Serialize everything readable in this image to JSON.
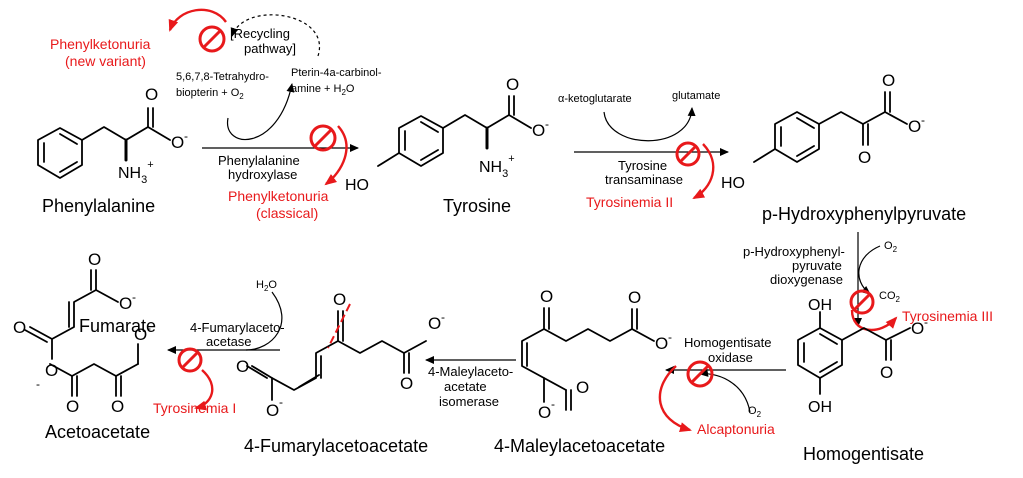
{
  "compounds": {
    "phenylalanine": "Phenylalanine",
    "tyrosine": "Tyrosine",
    "hpp": "p-Hydroxyphenylpyruvate",
    "homogentisate": "Homogentisate",
    "maleylacetoacetate": "4-Maleylacetoacetate",
    "fumarylacetoacetate": "4-Fumarylacetoacetate",
    "fumarate": "Fumarate",
    "acetoacetate": "Acetoacetate"
  },
  "enzymes": {
    "pah_1": "Phenylalanine",
    "pah_2": "hydroxylase",
    "tat_1": "Tyrosine",
    "tat_2": "transaminase",
    "hppd_1": "p-Hydroxyphenyl-",
    "hppd_2": "pyruvate",
    "hppd_3": "dioxygenase",
    "hgd_1": "Homogentisate",
    "hgd_2": "oxidase",
    "mai_1": "4-Maleylaceto-",
    "mai_2": "acetate",
    "mai_3": "isomerase",
    "fah_1": "4-Fumarylaceto-",
    "fah_2": "acetase"
  },
  "cofactors": {
    "bh4_1": "5,6,7,8-Tetrahydro-",
    "bh4_2": "biopterin + O",
    "bh4_2_sub": "2",
    "carb_1": "Pterin-4a-carbinol-",
    "carb_2": "amine + H",
    "carb_2_sub": "2",
    "carb_2_end": "O",
    "recycling_1": "[Recycling",
    "recycling_2": "pathway]",
    "akg": "α-ketoglutarate",
    "glutamate": "glutamate",
    "o2_hppd": "O",
    "o2_hppd_sub": "2",
    "co2": "CO",
    "co2_sub": "2",
    "o2_hgd": "O",
    "o2_hgd_sub": "2",
    "h2o_h": "H",
    "h2o_sub": "2",
    "h2o_o": "O"
  },
  "diseases": {
    "pku_new_1": "Phenylketonuria",
    "pku_new_2": "(new variant)",
    "pku_classical_1": "Phenylketonuria",
    "pku_classical_2": "(classical)",
    "tyr2": "Tyrosinemia II",
    "tyr3": "Tyrosinemia III",
    "alcaptonuria": "Alcaptonuria",
    "tyr1": "Tyrosinemia I"
  },
  "atoms": {
    "o": "O",
    "o_minus": "-",
    "nh3": "NH",
    "nh3_sub": "3",
    "plus": "+",
    "ho": "HO",
    "oh": "OH"
  },
  "colors": {
    "disease": "#e8191b",
    "structure": "#000000"
  }
}
